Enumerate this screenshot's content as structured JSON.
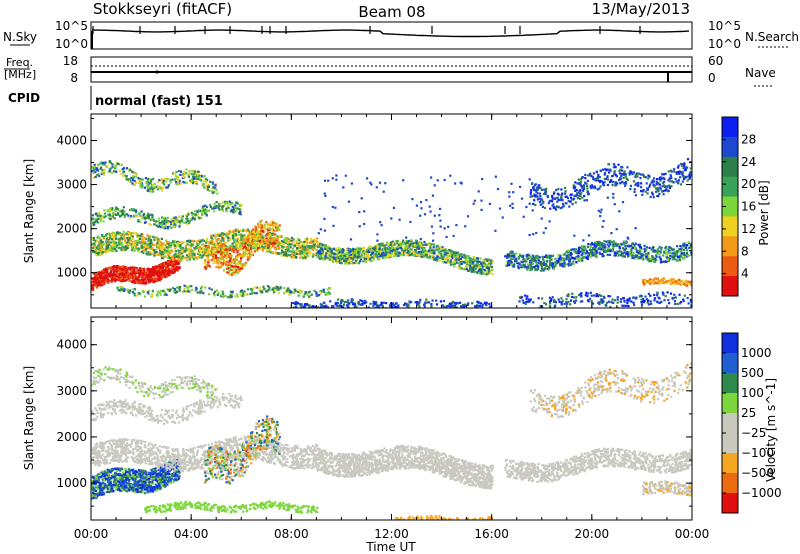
{
  "header": {
    "site": "Stokkseyri (fitACF)",
    "beam": "Beam 08",
    "date": "13/May/2013"
  },
  "panels": {
    "nsky": {
      "left_label": "N.Sky",
      "left_top": "10^5",
      "left_bottom": "10^0",
      "right_top": "10^5",
      "right_bottom": "10^0",
      "right_label": "N.Search"
    },
    "freq": {
      "left_label_1": "Freq.",
      "left_label_2": "[MHz]",
      "left_top": "18",
      "left_bottom": "8",
      "right_top": "60",
      "right_bottom": "0",
      "right_label": "Nave"
    },
    "cpid": {
      "left_label": "CPID",
      "text": "normal (fast) 151"
    }
  },
  "colors": {
    "power_scale": [
      "#0b20f0",
      "#1e48d0",
      "#2d7f4a",
      "#3aa35a",
      "#7dd63c",
      "#f0d020",
      "#f29a1a",
      "#ec5a14",
      "#e01010"
    ],
    "velocity_scale": [
      "#e01010",
      "#ec6a10",
      "#f5a623",
      "#c9c9c0",
      "#c9c9c0",
      "#7dd63c",
      "#2d8a4a",
      "#1f5fd0",
      "#1030e0"
    ]
  },
  "chart_data": [
    {
      "type": "heatmap",
      "name": "power",
      "ylabel": "Slant Range [km]",
      "ylim": [
        200,
        4600
      ],
      "yticks": [
        "1000",
        "2000",
        "3000",
        "4000"
      ],
      "xlim": [
        "00:00",
        "24:00"
      ],
      "xticks": [
        "00:00",
        "04:00",
        "08:00",
        "12:00",
        "16:00",
        "20:00",
        "00:00"
      ],
      "colorbar": {
        "label": "Power [dB]",
        "ticks": [
          "4",
          "8",
          "12",
          "16",
          "20",
          "24",
          "28"
        ]
      },
      "grid": false
    },
    {
      "type": "heatmap",
      "name": "velocity",
      "ylabel": "Slant Range [km]",
      "ylim": [
        200,
        4600
      ],
      "yticks": [
        "1000",
        "2000",
        "3000",
        "4000"
      ],
      "xlim": [
        "00:00",
        "24:00"
      ],
      "xticks": [
        "00:00",
        "04:00",
        "08:00",
        "12:00",
        "16:00",
        "20:00",
        "00:00"
      ],
      "xlabel": "Time UT",
      "colorbar": {
        "label": "Velocity [m s^-1]",
        "ticks": [
          "1000",
          "500",
          "100",
          "25",
          "−25",
          "−100",
          "−500",
          "−1000"
        ]
      },
      "grid": false
    }
  ]
}
